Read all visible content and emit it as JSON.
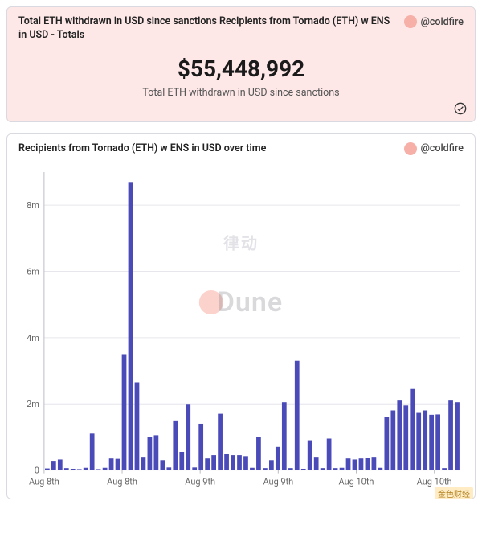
{
  "top_card": {
    "title": "Total ETH withdrawn in USD since sanctions   Recipients from Tornado (ETH) w ENS in USD - Totals",
    "author_label": "@coldfire",
    "author_dot_color": "#f6b0a8",
    "value": "$55,448,992",
    "value_label": "Total ETH withdrawn in USD since sanctions",
    "background_color": "#fde7e7",
    "title_fontsize": 12.5,
    "value_fontsize": 28,
    "label_fontsize": 12.5
  },
  "chart_card": {
    "title": "Recipients from Tornado (ETH) w ENS in USD over time",
    "author_label": "@coldfire",
    "author_dot_color": "#f6b0a8",
    "background_color": "#ffffff"
  },
  "chart": {
    "type": "bar",
    "bar_color": "#4a4ab8",
    "grid_color": "#e6e6ec",
    "axis_color": "#bcbcc6",
    "background_color": "#ffffff",
    "ylim": [
      0,
      9000000
    ],
    "yticks": [
      0,
      2000000,
      4000000,
      6000000,
      8000000
    ],
    "ytick_labels": [
      "0",
      "2m",
      "4m",
      "6m",
      "8m"
    ],
    "xtick_positions": [
      0,
      12,
      24,
      36,
      48,
      60
    ],
    "xtick_labels": [
      "Aug 8th",
      "Aug 8th",
      "Aug 9th",
      "Aug 9th",
      "Aug 10th",
      "Aug 10th"
    ],
    "values": [
      50000,
      280000,
      320000,
      60000,
      40000,
      30000,
      70000,
      1100000,
      30000,
      70000,
      350000,
      340000,
      3500000,
      8700000,
      2650000,
      400000,
      1000000,
      1050000,
      300000,
      80000,
      1500000,
      550000,
      2000000,
      80000,
      1400000,
      350000,
      450000,
      1700000,
      500000,
      450000,
      450000,
      420000,
      70000,
      1000000,
      60000,
      300000,
      700000,
      2050000,
      60000,
      3300000,
      40000,
      900000,
      400000,
      60000,
      950000,
      60000,
      70000,
      350000,
      320000,
      350000,
      360000,
      400000,
      70000,
      1600000,
      1800000,
      2100000,
      1950000,
      2450000,
      1750000,
      1800000,
      1670000,
      1680000,
      60000,
      2100000,
      2050000
    ],
    "bar_count": 65,
    "bar_width_ratio": 0.72,
    "label_fontsize": 11
  },
  "watermarks": {
    "dune": "Dune",
    "cn": "律动",
    "br_badge": "金色财经"
  }
}
